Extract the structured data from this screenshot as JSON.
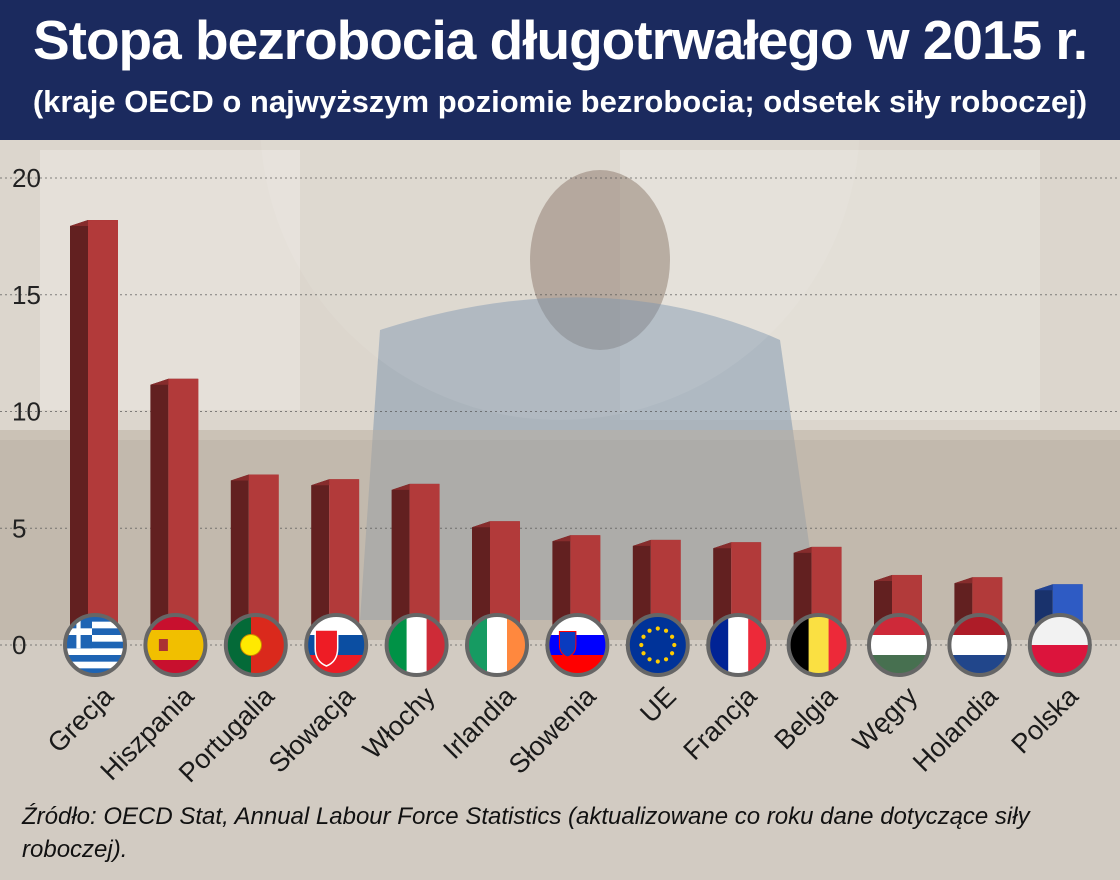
{
  "header": {
    "title": "Stopa bezrobocia długotrwałego w 2015 r.",
    "subtitle": "(kraje OECD o najwyższym poziomie bezrobocia; odsetek siły roboczej)"
  },
  "chart_data": {
    "type": "bar",
    "categories": [
      "Grecja",
      "Hiszpania",
      "Portugalia",
      "Słowacja",
      "Włochy",
      "Irlandia",
      "Słowenia",
      "UE",
      "Francja",
      "Belgia",
      "Węgry",
      "Holandia",
      "Polska"
    ],
    "values": [
      18.2,
      11.4,
      7.3,
      7.1,
      6.9,
      5.3,
      4.7,
      4.5,
      4.4,
      4.2,
      3.0,
      2.9,
      2.6
    ],
    "ylim": [
      0,
      20
    ],
    "yticks": [
      "0",
      "5",
      "10",
      "15",
      "20"
    ],
    "grid": true,
    "colors": {
      "default": "#b23a3a",
      "highlight": "#2e5bc4",
      "highlight_category": "Polska"
    },
    "flags": [
      "greece-flag",
      "spain-flag",
      "portugal-flag",
      "slovakia-flag",
      "italy-flag",
      "ireland-flag",
      "slovenia-flag",
      "eu-flag",
      "france-flag",
      "belgium-flag",
      "hungary-flag",
      "netherlands-flag",
      "poland-flag"
    ]
  },
  "source": "Źródło: OECD Stat, Annual Labour Force Statistics (aktualizowane co roku dane dotyczące siły roboczej)."
}
